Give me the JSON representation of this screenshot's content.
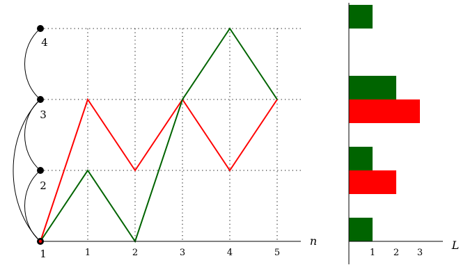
{
  "diagram": {
    "node_labels": [
      "1",
      "2",
      "3",
      "4"
    ],
    "n_axis": {
      "label": "n",
      "ticks": [
        "1",
        "2",
        "3",
        "4",
        "5"
      ]
    },
    "l_axis": {
      "label": "L",
      "ticks": [
        "1",
        "2",
        "3"
      ]
    },
    "edges": [
      [
        1,
        2
      ],
      [
        2,
        3
      ],
      [
        1,
        3
      ],
      [
        3,
        4
      ]
    ],
    "walks": [
      {
        "color": "#ff0000",
        "path": [
          1,
          3,
          2,
          3,
          2,
          3
        ]
      },
      {
        "color": "#006400",
        "path": [
          1,
          2,
          1,
          3,
          4,
          3
        ]
      }
    ],
    "histogram": [
      {
        "level": 4,
        "green": 1,
        "red": 0
      },
      {
        "level": 3,
        "green": 2,
        "red": 3
      },
      {
        "level": 2,
        "green": 1,
        "red": 2
      },
      {
        "level": 1,
        "green": 1,
        "red": 0
      }
    ]
  },
  "colors": {
    "green": "#006400",
    "red": "#ff0000",
    "grid": "#000000",
    "node": "#000000"
  }
}
